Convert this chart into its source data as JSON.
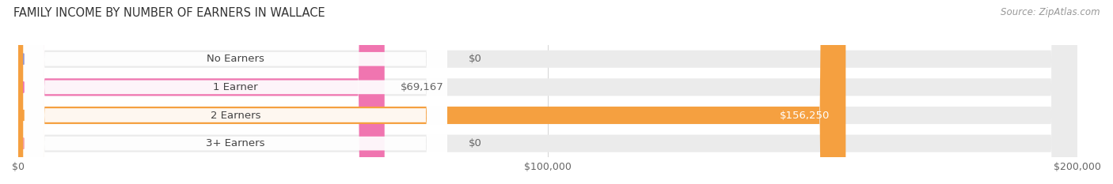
{
  "title": "FAMILY INCOME BY NUMBER OF EARNERS IN WALLACE",
  "source": "Source: ZipAtlas.com",
  "categories": [
    "No Earners",
    "1 Earner",
    "2 Earners",
    "3+ Earners"
  ],
  "values": [
    0,
    69167,
    156250,
    0
  ],
  "bar_colors": [
    "#9999cc",
    "#f075b0",
    "#f5a040",
    "#f5a0a0"
  ],
  "bar_bg_color": "#ebebeb",
  "value_labels": [
    "$0",
    "$69,167",
    "$156,250",
    "$0"
  ],
  "value_label_inside_color": "#ffffff",
  "value_label_outside_color": "#666666",
  "xlim": [
    0,
    200000
  ],
  "xtick_values": [
    0,
    100000,
    200000
  ],
  "xtick_labels": [
    "$0",
    "$100,000",
    "$200,000"
  ],
  "figsize": [
    14.06,
    2.33
  ],
  "dpi": 100,
  "bg_color": "#ffffff",
  "bar_height": 0.62,
  "label_pill_color": "#ffffff",
  "label_pill_alpha": 0.93,
  "label_text_color": "#444444",
  "label_fontsize": 9.5,
  "value_fontsize": 9.5,
  "title_fontsize": 10.5,
  "source_fontsize": 8.5,
  "xtick_fontsize": 9.0
}
